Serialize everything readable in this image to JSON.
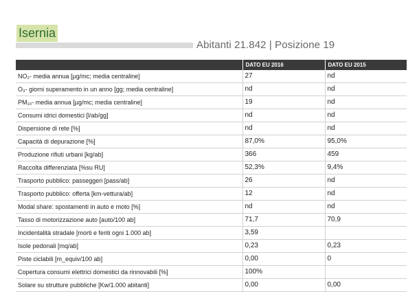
{
  "header": {
    "city": "Isernia",
    "subtitle_prefix": "Abitanti ",
    "population": "21.842",
    "separator": " | ",
    "position_prefix": "Posizione ",
    "position": "19"
  },
  "table": {
    "columns": [
      "",
      "DATO EU 2016",
      "DATO EU 2015"
    ],
    "rows": [
      {
        "label": "NO₂- media annua [µg/mc; media centraline]",
        "v2016": "27",
        "v2015": "nd"
      },
      {
        "label": "O₃- giorni superamento in un anno [gg; media centraline]",
        "v2016": "nd",
        "v2015": "nd"
      },
      {
        "label": "PM₁₀- media annua [µg/mc; media centraline]",
        "v2016": "19",
        "v2015": "nd"
      },
      {
        "label": "Consumi idrici domestici [l/ab/gg]",
        "v2016": "nd",
        "v2015": "nd"
      },
      {
        "label": "Dispersione di rete [%]",
        "v2016": "nd",
        "v2015": "nd"
      },
      {
        "label": "Capacità di depurazione [%]",
        "v2016": "87,0%",
        "v2015": "95,0%"
      },
      {
        "label": "Produzione rifiuti urbani [kg/ab]",
        "v2016": "366",
        "v2015": "459"
      },
      {
        "label": "Raccolta differenziata [%su RU]",
        "v2016": "52,3%",
        "v2015": "9,4%"
      },
      {
        "label": "Trasporto pubblico: passeggeri [pass/ab]",
        "v2016": "26",
        "v2015": "nd"
      },
      {
        "label": "Trasporto pubblico: offerta [km-vettura/ab]",
        "v2016": "12",
        "v2015": "nd"
      },
      {
        "label": "Modal share: spostamenti in auto e moto [%]",
        "v2016": "nd",
        "v2015": "nd"
      },
      {
        "label": "Tasso di motorizzazione auto [auto/100 ab]",
        "v2016": "71,7",
        "v2015": "70,9"
      },
      {
        "label": "Incidentalità stradale [morti e feriti ogni 1.000 ab]",
        "v2016": "3,59",
        "v2015": ""
      },
      {
        "label": "Isole pedonali [mq/ab]",
        "v2016": "0,23",
        "v2015": "0,23"
      },
      {
        "label": "Piste ciclabili [m_equiv/100 ab]",
        "v2016": "0,00",
        "v2015": "0"
      },
      {
        "label": "Copertura consumi elettrici domestici da rinnovabili [%]",
        "v2016": "100%",
        "v2015": ""
      },
      {
        "label": "Solare su strutture pubbliche [Kw/1.000 abitanti]",
        "v2016": "0,00",
        "v2015": "0,00"
      }
    ]
  }
}
